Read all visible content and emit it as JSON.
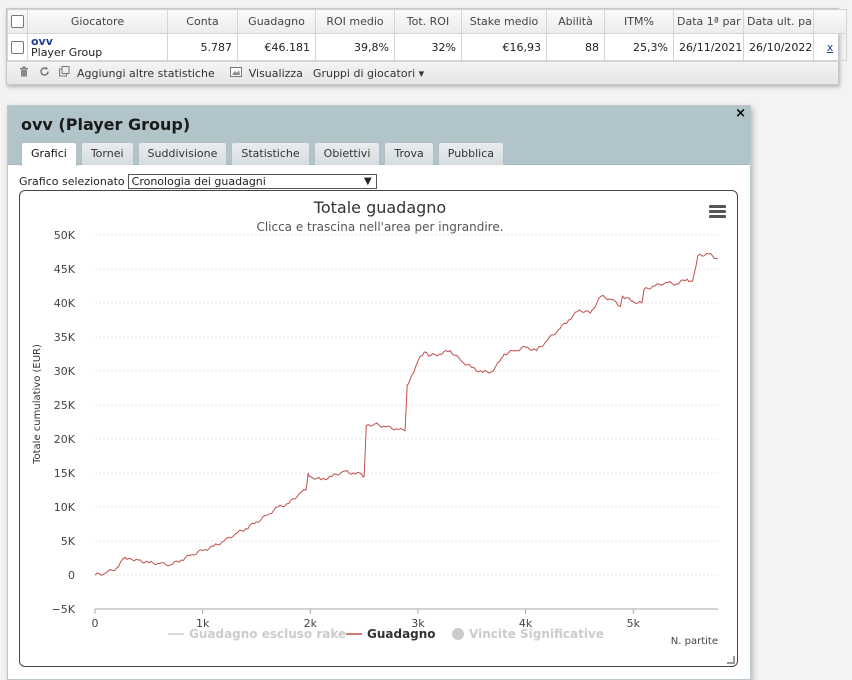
{
  "table": {
    "headers": [
      "Giocatore",
      "Conta",
      "Guadagno",
      "ROI medio",
      "Tot. ROI",
      "Stake medio",
      "Abilità",
      "ITM%",
      "Data 1ª par",
      "Data ult. pa"
    ],
    "row": {
      "player_name": "ovv",
      "player_group": "Player Group",
      "cells": [
        "5.787",
        "€46.181",
        "39,8%",
        "32%",
        "€16,93",
        "88",
        "25,3%",
        "26/11/2021",
        "26/10/2022"
      ],
      "remove_label": "x"
    }
  },
  "toolbar": {
    "delete_icon": "trash-icon",
    "refresh_icon": "refresh-icon",
    "add_stats_label": "Aggiungi altre statistiche",
    "view_label": "Visualizza",
    "groups_label": "Gruppi di giocatori ▾"
  },
  "dialog": {
    "title": "ovv (Player Group)",
    "close_label": "×",
    "tabs": [
      "Grafici",
      "Tornei",
      "Suddivisione",
      "Statistiche",
      "Obiettivi",
      "Trova",
      "Pubblica"
    ],
    "active_tab": "Grafici",
    "chart_select_label": "Grafico selezionato",
    "chart_select_value": "Cronologia dei guadagni"
  },
  "chart_data": {
    "type": "line",
    "title": "Totale guadagno",
    "subtitle": "Clicca e trascina nell'area per ingrandire.",
    "ylabel": "Totale cumulativo (EUR)",
    "xlabel": "N. partite",
    "ylim": [
      -5000,
      50000
    ],
    "xlim": [
      0,
      5787
    ],
    "yticks": [
      -5000,
      0,
      5000,
      10000,
      15000,
      20000,
      25000,
      30000,
      35000,
      40000,
      45000,
      50000
    ],
    "ytick_labels": [
      "−5K",
      "0",
      "5K",
      "10K",
      "15K",
      "20K",
      "25K",
      "30K",
      "35K",
      "40K",
      "45K",
      "50K"
    ],
    "xticks": [
      0,
      1000,
      2000,
      3000,
      4000,
      5000
    ],
    "xtick_labels": [
      "0",
      "1k",
      "2k",
      "3k",
      "4k",
      "5k"
    ],
    "grid": true,
    "legend_position": "bottom",
    "series": [
      {
        "name": "Guadagno escluso rake",
        "visible": false,
        "color": "#cccccc",
        "x": [],
        "y": []
      },
      {
        "name": "Guadagno",
        "visible": true,
        "color": "#c0504d",
        "x": [
          0,
          100,
          200,
          280,
          330,
          400,
          500,
          600,
          700,
          800,
          900,
          1000,
          1100,
          1200,
          1300,
          1400,
          1500,
          1600,
          1700,
          1800,
          1900,
          1960,
          1980,
          2000,
          2100,
          2200,
          2300,
          2400,
          2480,
          2500,
          2520,
          2600,
          2700,
          2800,
          2880,
          2900,
          2920,
          3000,
          3060,
          3100,
          3200,
          3300,
          3400,
          3500,
          3600,
          3700,
          3780,
          3800,
          3900,
          4000,
          4100,
          4200,
          4300,
          4400,
          4500,
          4600,
          4700,
          4800,
          4880,
          4900,
          5000,
          5080,
          5100,
          5200,
          5300,
          5400,
          5500,
          5550,
          5600,
          5700,
          5787
        ],
        "y": [
          0,
          300,
          1000,
          2600,
          2400,
          2200,
          1800,
          1700,
          1500,
          2200,
          3000,
          3600,
          4200,
          5000,
          6000,
          6800,
          7800,
          8800,
          10000,
          10500,
          12000,
          12500,
          15000,
          14500,
          14000,
          14500,
          15200,
          15000,
          14800,
          14500,
          22000,
          22200,
          21800,
          21500,
          21200,
          28000,
          28500,
          31500,
          32800,
          32200,
          32500,
          33000,
          31500,
          30500,
          29800,
          30000,
          32000,
          32500,
          33000,
          33500,
          33000,
          34500,
          36000,
          37500,
          39000,
          38500,
          41000,
          40500,
          39500,
          41000,
          40200,
          40000,
          42000,
          42500,
          43000,
          42800,
          43500,
          43200,
          47000,
          47200,
          46500
        ]
      },
      {
        "name": "Vincite Significative",
        "visible": false,
        "color": "#cccccc",
        "x": [],
        "y": []
      }
    ]
  }
}
